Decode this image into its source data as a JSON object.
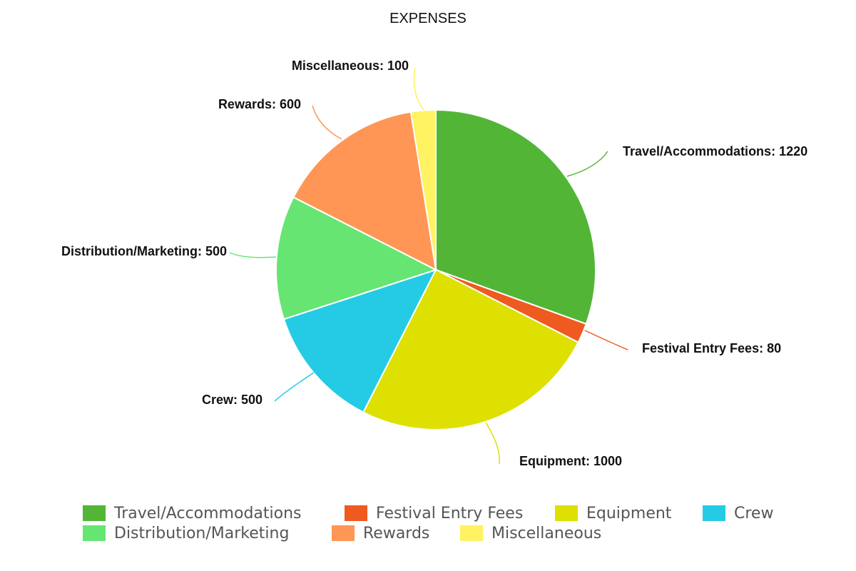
{
  "chart_data": {
    "type": "pie",
    "title": "EXPENSES",
    "slices": [
      {
        "label": "Travel/Accommodations",
        "value": 1220,
        "color": "#52b536",
        "data_label": "Travel/Accommodations: 1220"
      },
      {
        "label": "Festival Entry Fees",
        "value": 80,
        "color": "#ee5a20",
        "data_label": "Festival Entry Fees: 80"
      },
      {
        "label": "Equipment",
        "value": 1000,
        "color": "#dde000",
        "data_label": "Equipment: 1000"
      },
      {
        "label": "Crew",
        "value": 500,
        "color": "#25cbe5",
        "data_label": "Crew: 500"
      },
      {
        "label": "Distribution/Marketing",
        "value": 500,
        "color": "#66e573",
        "data_label": "Distribution/Marketing: 500"
      },
      {
        "label": "Rewards",
        "value": 600,
        "color": "#ff9655",
        "data_label": "Rewards: 600"
      },
      {
        "label": "Miscellaneous",
        "value": 100,
        "color": "#fff263",
        "data_label": "Miscellaneous: 100"
      }
    ],
    "legend_position": "bottom"
  }
}
